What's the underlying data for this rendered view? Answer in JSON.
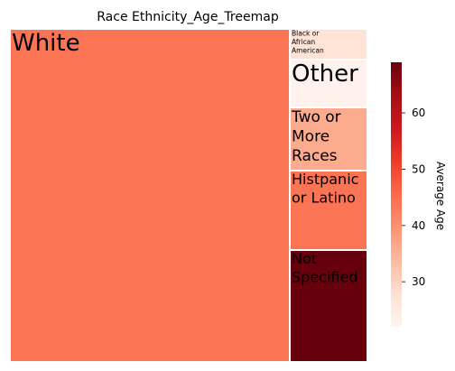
{
  "chart_data": {
    "type": "treemap",
    "title": "Race Ethnicity_Age_Treemap",
    "colorbar": {
      "label": "Average Age",
      "range": [
        22,
        69
      ],
      "ticks": [
        30,
        40,
        50,
        60
      ],
      "colormap": "Reds"
    },
    "categories": [
      "White",
      "Black or African American",
      "Other",
      "Two or More Races",
      "Histpanic or Latino",
      "Not Specified"
    ],
    "label_lines": [
      [
        "White"
      ],
      [
        "Black or",
        "African",
        "American"
      ],
      [
        "Other"
      ],
      [
        "Two or",
        "More",
        "Races"
      ],
      [
        "Histpanic",
        "or Latino"
      ],
      [
        "Not",
        "Specified"
      ]
    ],
    "color_values": [
      44,
      27,
      23,
      36,
      44,
      69
    ]
  }
}
